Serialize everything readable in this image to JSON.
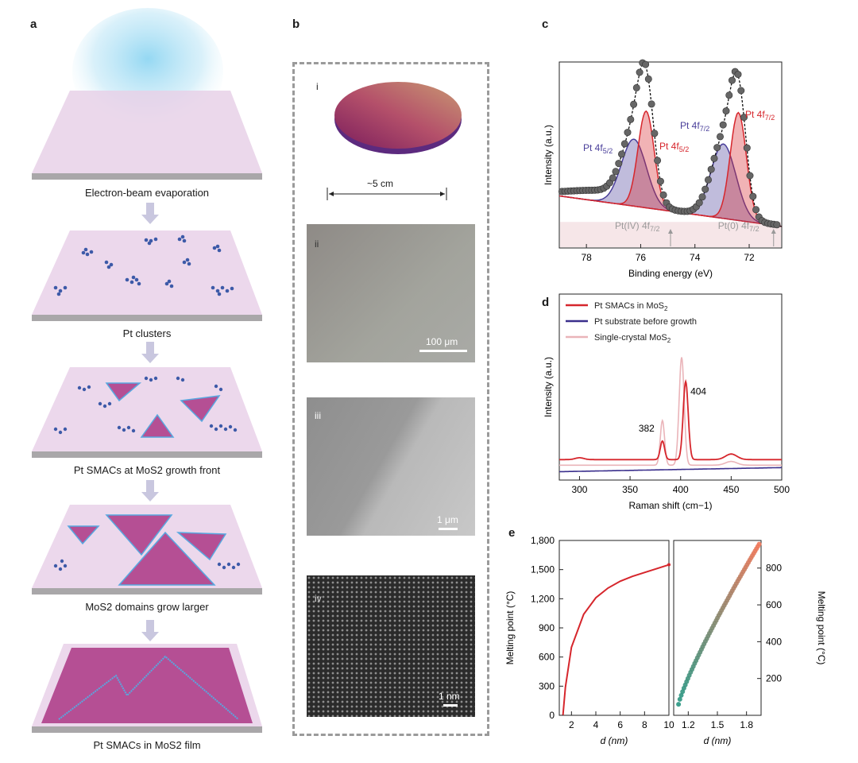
{
  "panels": {
    "a": "a",
    "b": "b",
    "c": "c",
    "d": "d",
    "e": "e"
  },
  "panel_a": {
    "steps": [
      "Electron-beam evaporation",
      "Pt clusters",
      "Pt SMACs at MoS2 growth front",
      "MoS2 domains grow larger",
      "Pt SMACs in MoS2 film"
    ]
  },
  "panel_b": {
    "insets": [
      "i",
      "ii",
      "iii",
      "iv"
    ],
    "wafer_size": "~5 cm",
    "scalebars": [
      "100 μm",
      "1 μm",
      "1 nm"
    ]
  },
  "colors": {
    "pt_red": "#d6262c",
    "pt_purple": "#4a3f9a",
    "single_crystal": "#eab4b9",
    "substrate": "#e9d3ea",
    "domain": "#b54f94",
    "cluster": "#3d5aa8"
  },
  "chart_data": [
    {
      "type": "line",
      "title": "",
      "xlabel": "Binding energy (eV)",
      "ylabel": "Intensity (a.u.)",
      "xlim": [
        79,
        70.8
      ],
      "x_reversed": true,
      "xticks": [
        78,
        76,
        74,
        72
      ],
      "peaks": [
        {
          "label": "Pt 4f5/2",
          "center": 76.25,
          "color": "#4a3f9a"
        },
        {
          "label": "Pt 4f5/2",
          "center": 75.8,
          "color": "#d6262c"
        },
        {
          "label": "Pt 4f7/2",
          "center": 72.95,
          "color": "#4a3f9a"
        },
        {
          "label": "Pt 4f7/2",
          "center": 72.4,
          "color": "#d6262c"
        }
      ],
      "markers": [
        {
          "label": "Pt(IV) 4f7/2",
          "x": 74.9
        },
        {
          "label": "Pt(0) 4f7/2",
          "x": 71.1
        }
      ]
    },
    {
      "type": "line",
      "xlabel": "Raman shift (cm−1)",
      "ylabel": "Intensity (a.u.)",
      "xlim": [
        280,
        500
      ],
      "xticks": [
        300,
        350,
        400,
        450,
        500
      ],
      "series": [
        {
          "name": "Pt SMACs in MoS2",
          "color": "#d6262c",
          "peaks": [
            382,
            404
          ]
        },
        {
          "name": "Pt substrate before growth",
          "color": "#3a2f8c"
        },
        {
          "name": "Single-crystal MoS2",
          "color": "#eab4b9",
          "peaks": [
            382,
            401
          ]
        }
      ],
      "annotations": [
        "382",
        "404"
      ]
    },
    {
      "type": "line",
      "xlabel": "d (nm)",
      "ylabel": "Melting point (°C)",
      "xlim": [
        1,
        10
      ],
      "ylim": [
        0,
        1800
      ],
      "xticks": [
        2,
        4,
        6,
        8,
        10
      ],
      "yticks": [
        "0",
        "300",
        "600",
        "900",
        "1,200",
        "1,500",
        "1,800"
      ],
      "x": [
        1.3,
        1.5,
        2,
        3,
        4,
        5,
        6,
        7,
        8,
        9,
        10
      ],
      "y": [
        0,
        290,
        700,
        1040,
        1210,
        1310,
        1380,
        1430,
        1470,
        1510,
        1550
      ]
    },
    {
      "type": "scatter",
      "xlabel": "d (nm)",
      "ylabel": "Melting point (°C)",
      "xlim": [
        1.05,
        1.95
      ],
      "ylim": [
        0,
        950
      ],
      "xticks": [
        "1.2",
        "1.5",
        "1.8"
      ],
      "xtick_values": [
        1.2,
        1.5,
        1.8
      ],
      "yticks": [
        "200",
        "400",
        "600",
        "800"
      ],
      "ytick_values": [
        200,
        400,
        600,
        800
      ],
      "x_start": 1.1,
      "x_end": 1.93,
      "y_start": 60,
      "y_end": 930
    }
  ]
}
